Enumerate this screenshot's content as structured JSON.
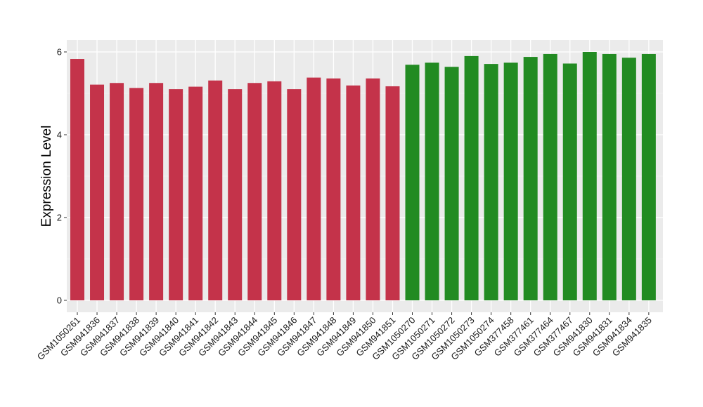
{
  "chart_data": {
    "type": "bar",
    "title": "",
    "xlabel": "",
    "ylabel": "Expression Level",
    "ylim": [
      0,
      6
    ],
    "yticks": [
      0,
      2,
      4,
      6
    ],
    "grid": true,
    "panel_background": "#ebebeb",
    "categories": [
      "GSM1050261",
      "GSM941836",
      "GSM941837",
      "GSM941838",
      "GSM941839",
      "GSM941840",
      "GSM941841",
      "GSM941842",
      "GSM941843",
      "GSM941844",
      "GSM941845",
      "GSM941846",
      "GSM941847",
      "GSM941848",
      "GSM941849",
      "GSM941850",
      "GSM941851",
      "GSM1050270",
      "GSM1050271",
      "GSM1050272",
      "GSM1050273",
      "GSM1050274",
      "GSM377458",
      "GSM377461",
      "GSM377464",
      "GSM377467",
      "GSM941830",
      "GSM941831",
      "GSM941834",
      "GSM941835"
    ],
    "values": [
      5.83,
      5.21,
      5.25,
      5.13,
      5.25,
      5.1,
      5.16,
      5.31,
      5.1,
      5.25,
      5.29,
      5.1,
      5.38,
      5.36,
      5.19,
      5.36,
      5.17,
      5.69,
      5.74,
      5.64,
      5.9,
      5.71,
      5.74,
      5.88,
      5.95,
      5.72,
      6.0,
      5.95,
      5.86,
      5.95
    ],
    "colors": [
      "#c4334a",
      "#c4334a",
      "#c4334a",
      "#c4334a",
      "#c4334a",
      "#c4334a",
      "#c4334a",
      "#c4334a",
      "#c4334a",
      "#c4334a",
      "#c4334a",
      "#c4334a",
      "#c4334a",
      "#c4334a",
      "#c4334a",
      "#c4334a",
      "#c4334a",
      "#228b22",
      "#228b22",
      "#228b22",
      "#228b22",
      "#228b22",
      "#228b22",
      "#228b22",
      "#228b22",
      "#228b22",
      "#228b22",
      "#228b22",
      "#228b22",
      "#228b22"
    ]
  }
}
